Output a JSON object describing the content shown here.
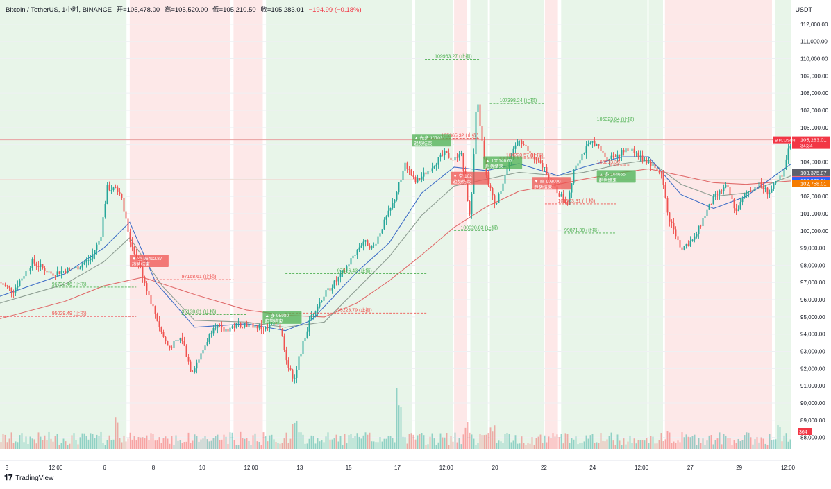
{
  "header": {
    "symbol": "Bitcoin / TetherUS, 1小时, BINANCE",
    "open": "开=105,478.00",
    "high": "高=105,520.00",
    "low": "低=105,210.50",
    "close": "收=105,283.01",
    "change": "−194.99 (−0.18%)"
  },
  "currency": "USDT",
  "logo": "TradingView",
  "colors": {
    "up": "#26a69a",
    "down": "#ef5350",
    "bg_up": "#e8f5e9",
    "bg_down": "#fde8e8",
    "ema_fast": "#3f6ec7",
    "ema_slow": "#e06b6b",
    "ema_mid": "#8e9e93"
  },
  "chart_data": {
    "type": "candlestick",
    "price_axis": {
      "range": [
        87300,
        112600
      ],
      "ticks": [
        "88,000.00",
        "89,000.00",
        "90,000.00",
        "91,000.00",
        "92,000.00",
        "93,000.00",
        "94,000.00",
        "95,000.00",
        "96,000.00",
        "97,000.00",
        "98,000.00",
        "99,000.00",
        "100,000.00",
        "101,000.00",
        "102,000.00",
        "103,000.00",
        "104,000.00",
        "105,000.00",
        "106,000.00",
        "107,000.00",
        "108,000.00",
        "109,000.00",
        "110,000.00",
        "111,000.00",
        "112,000.00"
      ]
    },
    "time_axis": [
      "3",
      "12:00",
      "6",
      "8",
      "10",
      "12:00",
      "13",
      "15",
      "17",
      "12:00",
      "20",
      "22",
      "24",
      "12:00",
      "27",
      "29",
      "12:00"
    ],
    "price_path": [
      [
        0,
        97000
      ],
      [
        0.02,
        96500
      ],
      [
        0.05,
        98200
      ],
      [
        0.08,
        97500
      ],
      [
        0.12,
        97900
      ],
      [
        0.14,
        98400
      ],
      [
        0.155,
        99600
      ],
      [
        0.165,
        102500
      ],
      [
        0.185,
        102300
      ],
      [
        0.2,
        99500
      ],
      [
        0.215,
        98000
      ],
      [
        0.23,
        96200
      ],
      [
        0.25,
        94000
      ],
      [
        0.26,
        93200
      ],
      [
        0.28,
        93800
      ],
      [
        0.295,
        91800
      ],
      [
        0.31,
        92800
      ],
      [
        0.33,
        94600
      ],
      [
        0.345,
        94200
      ],
      [
        0.37,
        94600
      ],
      [
        0.39,
        94500
      ],
      [
        0.41,
        94300
      ],
      [
        0.43,
        94700
      ],
      [
        0.445,
        92000
      ],
      [
        0.455,
        91300
      ],
      [
        0.46,
        92500
      ],
      [
        0.48,
        95100
      ],
      [
        0.5,
        96300
      ],
      [
        0.53,
        97600
      ],
      [
        0.545,
        98600
      ],
      [
        0.56,
        99400
      ],
      [
        0.575,
        99000
      ],
      [
        0.59,
        100300
      ],
      [
        0.605,
        101500
      ],
      [
        0.625,
        103900
      ],
      [
        0.64,
        102800
      ],
      [
        0.66,
        103500
      ],
      [
        0.685,
        104500
      ],
      [
        0.7,
        104100
      ],
      [
        0.71,
        104700
      ],
      [
        0.725,
        100500
      ],
      [
        0.735,
        107800
      ],
      [
        0.75,
        103000
      ],
      [
        0.765,
        101500
      ],
      [
        0.78,
        103500
      ],
      [
        0.8,
        105400
      ],
      [
        0.82,
        104300
      ],
      [
        0.84,
        103600
      ],
      [
        0.86,
        102200
      ],
      [
        0.875,
        101600
      ],
      [
        0.885,
        103700
      ],
      [
        0.9,
        104600
      ],
      [
        0.915,
        105200
      ],
      [
        0.935,
        104200
      ],
      [
        0.955,
        104500
      ],
      [
        0.975,
        104800
      ],
      [
        0.985,
        104300
      ],
      [
        1.0,
        104000
      ],
      [
        1.02,
        103300
      ],
      [
        1.03,
        100800
      ],
      [
        1.05,
        99000
      ],
      [
        1.07,
        99500
      ],
      [
        1.085,
        100800
      ],
      [
        1.1,
        101900
      ],
      [
        1.12,
        102600
      ],
      [
        1.135,
        101100
      ],
      [
        1.15,
        102200
      ],
      [
        1.17,
        102700
      ],
      [
        1.185,
        102200
      ],
      [
        1.205,
        103200
      ],
      [
        1.22,
        105283
      ]
    ],
    "ema_fast": [
      [
        0,
        96200
      ],
      [
        0.1,
        97500
      ],
      [
        0.16,
        99000
      ],
      [
        0.2,
        100500
      ],
      [
        0.24,
        97000
      ],
      [
        0.3,
        94400
      ],
      [
        0.38,
        94600
      ],
      [
        0.44,
        94200
      ],
      [
        0.48,
        94800
      ],
      [
        0.55,
        97600
      ],
      [
        0.6,
        99300
      ],
      [
        0.65,
        102200
      ],
      [
        0.7,
        103700
      ],
      [
        0.75,
        103500
      ],
      [
        0.8,
        103900
      ],
      [
        0.86,
        103200
      ],
      [
        0.9,
        103700
      ],
      [
        0.96,
        104300
      ],
      [
        1.0,
        104300
      ],
      [
        1.05,
        102100
      ],
      [
        1.1,
        101300
      ],
      [
        1.15,
        102000
      ],
      [
        1.22,
        103900
      ]
    ],
    "ema_mid": [
      [
        0,
        95800
      ],
      [
        0.1,
        96900
      ],
      [
        0.16,
        98200
      ],
      [
        0.2,
        99600
      ],
      [
        0.25,
        96800
      ],
      [
        0.3,
        94800
      ],
      [
        0.38,
        94700
      ],
      [
        0.44,
        94400
      ],
      [
        0.5,
        94700
      ],
      [
        0.55,
        96600
      ],
      [
        0.6,
        98500
      ],
      [
        0.65,
        100900
      ],
      [
        0.7,
        102600
      ],
      [
        0.75,
        103000
      ],
      [
        0.8,
        103400
      ],
      [
        0.86,
        103200
      ],
      [
        0.9,
        103400
      ],
      [
        0.96,
        103900
      ],
      [
        1.0,
        104100
      ],
      [
        1.05,
        102700
      ],
      [
        1.1,
        102000
      ],
      [
        1.15,
        102200
      ],
      [
        1.22,
        103200
      ]
    ],
    "ema_slow": [
      [
        0,
        94900
      ],
      [
        0.1,
        95900
      ],
      [
        0.16,
        96800
      ],
      [
        0.22,
        97300
      ],
      [
        0.3,
        96300
      ],
      [
        0.38,
        95400
      ],
      [
        0.44,
        95100
      ],
      [
        0.5,
        95000
      ],
      [
        0.55,
        95800
      ],
      [
        0.6,
        97100
      ],
      [
        0.65,
        98600
      ],
      [
        0.7,
        100200
      ],
      [
        0.75,
        101400
      ],
      [
        0.8,
        102300
      ],
      [
        0.86,
        102700
      ],
      [
        0.9,
        103000
      ],
      [
        0.96,
        103400
      ],
      [
        1.0,
        103600
      ],
      [
        1.05,
        103200
      ],
      [
        1.1,
        102800
      ],
      [
        1.15,
        102700
      ],
      [
        1.22,
        102900
      ]
    ],
    "background_regions": [
      {
        "from": 0.0,
        "to": 0.195,
        "trend": "up"
      },
      {
        "from": 0.2,
        "to": 0.355,
        "trend": "down"
      },
      {
        "from": 0.36,
        "to": 0.405,
        "trend": "down"
      },
      {
        "from": 0.41,
        "to": 0.635,
        "trend": "up"
      },
      {
        "from": 0.64,
        "to": 0.698,
        "trend": "up"
      },
      {
        "from": 0.7,
        "to": 0.72,
        "trend": "down"
      },
      {
        "from": 0.725,
        "to": 0.752,
        "trend": "up"
      },
      {
        "from": 0.755,
        "to": 0.8,
        "trend": "up"
      },
      {
        "from": 0.8,
        "to": 0.838,
        "trend": "up"
      },
      {
        "from": 0.84,
        "to": 0.86,
        "trend": "down"
      },
      {
        "from": 0.865,
        "to": 0.998,
        "trend": "up"
      },
      {
        "from": 1.0,
        "to": 1.022,
        "trend": "up"
      },
      {
        "from": 1.025,
        "to": 1.19,
        "trend": "down"
      },
      {
        "from": 1.195,
        "to": 1.22,
        "trend": "up"
      }
    ],
    "levels": [
      {
        "price": 96730.46,
        "label": "96730.46 (止损)",
        "color": "#4caf50",
        "x1": 0.08,
        "x2": 0.21,
        "lx": 0.08
      },
      {
        "price": 95029.49,
        "label": "95029.49 (止损)",
        "color": "#ef5350",
        "x1": 0.0,
        "x2": 0.21,
        "lx": 0.08
      },
      {
        "price": 97168.61,
        "label": "97168.61 (止损)",
        "color": "#ef5350",
        "x1": 0.23,
        "x2": 0.36,
        "lx": 0.28
      },
      {
        "price": 95138.81,
        "label": "95138.81 (止损)",
        "color": "#4caf50",
        "x1": 0.28,
        "x2": 0.38,
        "lx": 0.28
      },
      {
        "price": 97516.43,
        "label": "97516.43 (止损)",
        "color": "#4caf50",
        "x1": 0.44,
        "x2": 0.66,
        "lx": 0.52
      },
      {
        "price": 95223.79,
        "label": "95223.79 (止损)",
        "color": "#ef5350",
        "x1": 0.44,
        "x2": 0.66,
        "lx": 0.52
      },
      {
        "price": 109963.27,
        "label": "109963.27 (止损)",
        "color": "#4caf50",
        "x1": 0.655,
        "x2": 0.74,
        "lx": 0.67
      },
      {
        "price": 107398.24,
        "label": "107398.24 (止损)",
        "color": "#4caf50",
        "x1": 0.755,
        "x2": 0.84,
        "lx": 0.77
      },
      {
        "price": 105365.32,
        "label": "105365.32 (止损)",
        "color": "#ef5350",
        "x1": 0.66,
        "x2": 0.74,
        "lx": 0.68
      },
      {
        "price": 104220.57,
        "label": "104220.57 (止损)",
        "color": "#ef5350",
        "x1": 0.77,
        "x2": 0.84,
        "lx": 0.78
      },
      {
        "price": 100020.03,
        "label": "100020.03 (止损)",
        "color": "#4caf50",
        "x1": 0.7,
        "x2": 0.76,
        "lx": 0.71
      },
      {
        "price": 99871.38,
        "label": "99871.38 (止损)",
        "color": "#4caf50",
        "x1": 0.87,
        "x2": 0.95,
        "lx": 0.87
      },
      {
        "price": 101563.31,
        "label": "101563.31 (止损)",
        "color": "#ef5350",
        "x1": 0.84,
        "x2": 0.95,
        "lx": 0.86
      },
      {
        "price": 106323.84,
        "label": "106323.84 (止损)",
        "color": "#4caf50",
        "x1": 0.94,
        "x2": 0.97,
        "lx": 0.92
      },
      {
        "price": 103813.36,
        "label": "103813.36",
        "color": "#ef5350",
        "x1": 0.94,
        "x2": 0.97,
        "lx": 0.92
      }
    ],
    "signals": [
      {
        "x": 0.2,
        "price": 98300,
        "text": "▼ 空 96492.87",
        "trend": "down"
      },
      {
        "x": 0.405,
        "price": 95000,
        "text": "▲ 多 95980",
        "trend": "up"
      },
      {
        "x": 0.635,
        "price": 105300,
        "text": "▲ 做多 107031",
        "trend": "up"
      },
      {
        "x": 0.695,
        "price": 103100,
        "text": "▼ 空 102",
        "trend": "down"
      },
      {
        "x": 0.745,
        "price": 104000,
        "text": "▲ 105146.67",
        "trend": "up"
      },
      {
        "x": 0.82,
        "price": 102800,
        "text": "▼ 空 103000",
        "trend": "down"
      },
      {
        "x": 0.92,
        "price": 103200,
        "text": "▲ 多 104665",
        "trend": "up"
      }
    ],
    "trend_text": "趋势结束",
    "horizontal_lines": [
      {
        "price": 105283.01,
        "color": "#e8a0a0"
      },
      {
        "price": 102961.04,
        "color": "#f0b08a"
      }
    ],
    "price_labels": [
      {
        "price": 105283.01,
        "text": "105,283.01",
        "sub": "34:34",
        "bg": "#f23645"
      },
      {
        "price": 103375.87,
        "text": "103,375.87",
        "bg": "#5d606b"
      },
      {
        "price": 102961.04,
        "text": "102,961.04",
        "bg": "#f23645"
      },
      {
        "price": 102925.21,
        "text": "102,925.21",
        "bg": "#2962ff"
      },
      {
        "price": 102758.01,
        "text": "102,758.01",
        "bg": "#f57c00"
      }
    ],
    "ticker_tag": "BTCUSDT",
    "volume_label": "364",
    "volume_spikes": [
      {
        "x": 0.18,
        "v": 1.0
      },
      {
        "x": 0.455,
        "v": 0.6
      },
      {
        "x": 0.615,
        "v": 1.5
      },
      {
        "x": 0.72,
        "v": 0.55
      },
      {
        "x": 0.76,
        "v": 0.4
      },
      {
        "x": 1.03,
        "v": 0.4
      },
      {
        "x": 1.2,
        "v": 0.3
      }
    ]
  }
}
